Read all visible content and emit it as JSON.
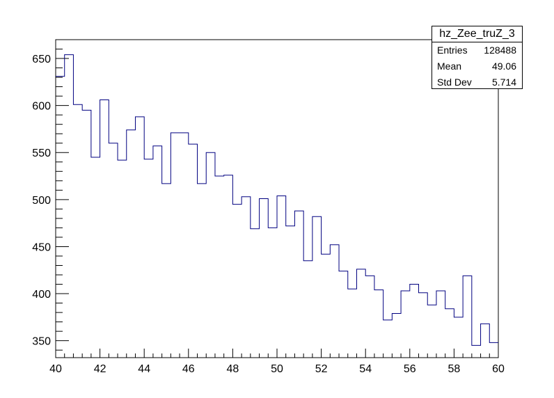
{
  "chart_data": {
    "type": "histogram",
    "title": "",
    "xlabel": "",
    "ylabel": "",
    "xlim": [
      40,
      60
    ],
    "ylim": [
      332,
      670
    ],
    "line_color": "#000080",
    "bin_edges": [
      40.0,
      40.4,
      40.8,
      41.2,
      41.6,
      42.0,
      42.4,
      42.8,
      43.2,
      43.6,
      44.0,
      44.4,
      44.8,
      45.2,
      45.6,
      46.0,
      46.4,
      46.8,
      47.2,
      47.6,
      48.0,
      48.4,
      48.8,
      49.2,
      49.6,
      50.0,
      50.4,
      50.8,
      51.2,
      51.6,
      52.0,
      52.4,
      52.8,
      53.2,
      53.6,
      54.0,
      54.4,
      54.8,
      55.2,
      55.6,
      56.0,
      56.4,
      56.8,
      57.2,
      57.6,
      58.0,
      58.4,
      58.8,
      59.2,
      59.6,
      60.0
    ],
    "values": [
      631,
      654,
      601,
      595,
      545,
      606,
      560,
      542,
      574,
      588,
      543,
      557,
      517,
      571,
      571,
      559,
      517,
      550,
      525,
      526,
      495,
      503,
      469,
      501,
      470,
      504,
      472,
      488,
      435,
      482,
      442,
      452,
      424,
      405,
      426,
      419,
      404,
      372,
      379,
      403,
      410,
      401,
      388,
      403,
      384,
      375,
      419,
      345,
      368,
      348
    ],
    "x_ticks": [
      40,
      42,
      44,
      46,
      48,
      50,
      52,
      54,
      56,
      58,
      60
    ],
    "y_ticks": [
      350,
      400,
      450,
      500,
      550,
      600,
      650
    ],
    "x_tick_labels": [
      "40",
      "42",
      "44",
      "46",
      "48",
      "50",
      "52",
      "54",
      "56",
      "58",
      "60"
    ],
    "y_tick_labels": [
      "350",
      "400",
      "450",
      "500",
      "550",
      "600",
      "650"
    ]
  },
  "stats": {
    "title": "hz_Zee_truZ_3",
    "entries_label": "Entries",
    "entries_value": "128488",
    "mean_label": "Mean",
    "mean_value": "49.06",
    "stddev_label": "Std Dev",
    "stddev_value": "5.714"
  }
}
